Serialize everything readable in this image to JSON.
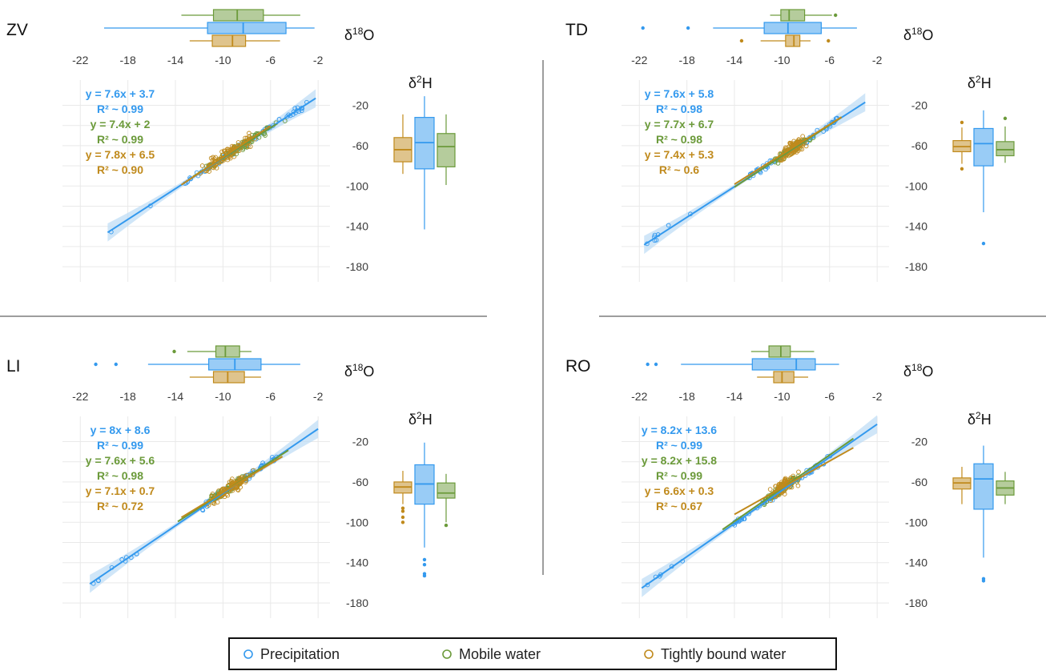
{
  "colors": {
    "precipitation": "#3399ee",
    "mobile": "#6b9a3a",
    "bound": "#c08a1c",
    "ci": "#bcdcf5",
    "grid": "#e9e9e9",
    "tick": "#3a3a3a",
    "divider": "#7d7d7d"
  },
  "axis_labels": {
    "x_prefix": "δ",
    "x_sup": "18",
    "x_suffix": "O",
    "y_prefix": "δ",
    "y_sup": "2",
    "y_suffix": "H"
  },
  "legend": {
    "items": [
      {
        "label": "Precipitation",
        "color": "#3399ee"
      },
      {
        "label": "Mobile water",
        "color": "#6b9a3a"
      },
      {
        "label": "Tightly bound water",
        "color": "#c08a1c"
      }
    ]
  },
  "chart_data": [
    {
      "type": "scatter",
      "site": "ZV",
      "x_ticks": [
        -22,
        -18,
        -14,
        -10,
        -6,
        -2
      ],
      "y_ticks": [
        -20,
        -60,
        -100,
        -140,
        -180
      ],
      "xlim": [
        -23.5,
        -1
      ],
      "ylim": [
        -195,
        5
      ],
      "series": [
        {
          "name": "Precipitation",
          "key": "precipitation",
          "slope": 7.6,
          "intercept": 3.7,
          "x_range": [
            -19.7,
            -2.2
          ],
          "equation": "y = 7.6x + 3.7",
          "r2": "R² ~ 0.99",
          "box_o18": {
            "whisker_lo": -20,
            "q1": -11.3,
            "median": -8.3,
            "q3": -4.7,
            "whisker_hi": -2.3,
            "outliers": []
          },
          "box_h2": {
            "whisker_lo": -143,
            "q1": -83,
            "median": -57,
            "q3": -32,
            "whisker_hi": -11,
            "outliers": []
          }
        },
        {
          "name": "Mobile water",
          "key": "mobile",
          "slope": 7.4,
          "intercept": 2,
          "x_range": [
            -12.5,
            -5.5
          ],
          "equation": "y = 7.4x + 2",
          "r2": "R² ~ 0.99",
          "box_o18": {
            "whisker_lo": -13.5,
            "q1": -10.8,
            "median": -8.8,
            "q3": -6.6,
            "whisker_hi": -3.5,
            "outliers": []
          },
          "box_h2": {
            "whisker_lo": -99,
            "q1": -81,
            "median": -61,
            "q3": -48,
            "whisker_hi": -29,
            "outliers": []
          }
        },
        {
          "name": "Tightly bound water",
          "key": "bound",
          "slope": 7.8,
          "intercept": 6.5,
          "x_range": [
            -13.5,
            -6
          ],
          "equation": "y = 7.8x + 6.5",
          "r2": "R² ~ 0.90",
          "box_o18": {
            "whisker_lo": -12.8,
            "q1": -10.9,
            "median": -9.2,
            "q3": -8.1,
            "whisker_hi": -5.2,
            "outliers": []
          },
          "box_h2": {
            "whisker_lo": -88,
            "q1": -76,
            "median": -64,
            "q3": -52,
            "whisker_hi": -29,
            "outliers": []
          }
        }
      ]
    },
    {
      "type": "scatter",
      "site": "TD",
      "x_ticks": [
        -22,
        -18,
        -14,
        -10,
        -6,
        -2
      ],
      "y_ticks": [
        -20,
        -60,
        -100,
        -140,
        -180
      ],
      "xlim": [
        -23.5,
        -1
      ],
      "ylim": [
        -195,
        5
      ],
      "series": [
        {
          "name": "Precipitation",
          "key": "precipitation",
          "slope": 7.6,
          "intercept": 5.8,
          "x_range": [
            -21.6,
            -3
          ],
          "equation": "y = 7.6x + 5.8",
          "r2": "R² ~ 0.98",
          "box_o18": {
            "whisker_lo": -15.8,
            "q1": -11.5,
            "median": -9.5,
            "q3": -6.7,
            "whisker_hi": -3.7,
            "outliers": [
              -21.7,
              -17.9
            ]
          },
          "box_h2": {
            "whisker_lo": -126,
            "q1": -80,
            "median": -58,
            "q3": -43,
            "whisker_hi": -25,
            "outliers": [
              -157
            ]
          }
        },
        {
          "name": "Mobile water",
          "key": "mobile",
          "slope": 7.7,
          "intercept": 6.7,
          "x_range": [
            -14,
            -5
          ],
          "equation": "y = 7.7x + 6.7",
          "r2": "R² ~ 0.98",
          "box_o18": {
            "whisker_lo": -11,
            "q1": -10.1,
            "median": -9.4,
            "q3": -8.1,
            "whisker_hi": -5.8,
            "outliers": [
              -5.5
            ]
          },
          "box_h2": {
            "whisker_lo": -77,
            "q1": -70,
            "median": -64,
            "q3": -56,
            "whisker_hi": -41,
            "outliers": [
              -33
            ]
          }
        },
        {
          "name": "Tightly bound water",
          "key": "bound",
          "slope": 7.4,
          "intercept": 5.3,
          "x_range": [
            -14,
            -5
          ],
          "equation": "y = 7.4x + 5.3",
          "r2": "R² ~ 0.6",
          "box_o18": {
            "whisker_lo": -11.8,
            "q1": -9.7,
            "median": -9,
            "q3": -8.5,
            "whisker_hi": -7.6,
            "outliers": [
              -13.4,
              -6.1
            ]
          },
          "box_h2": {
            "whisker_lo": -78,
            "q1": -66,
            "median": -61,
            "q3": -55,
            "whisker_hi": -42,
            "outliers": [
              -37,
              -83
            ]
          }
        }
      ]
    },
    {
      "type": "scatter",
      "site": "LI",
      "x_ticks": [
        -22,
        -18,
        -14,
        -10,
        -6,
        -2
      ],
      "y_ticks": [
        -20,
        -60,
        -100,
        -140,
        -180
      ],
      "xlim": [
        -23.5,
        -1
      ],
      "ylim": [
        -195,
        5
      ],
      "series": [
        {
          "name": "Precipitation",
          "key": "precipitation",
          "slope": 8,
          "intercept": 8.6,
          "x_range": [
            -21.2,
            -2
          ],
          "equation": "y = 8x + 8.6",
          "r2": "R² ~ 0.99",
          "box_o18": {
            "whisker_lo": -16.3,
            "q1": -11.2,
            "median": -9,
            "q3": -6.8,
            "whisker_hi": -3.5,
            "outliers": [
              -20.7,
              -19
            ]
          },
          "box_h2": {
            "whisker_lo": -125,
            "q1": -82,
            "median": -62,
            "q3": -43,
            "whisker_hi": -21,
            "outliers": [
              -137,
              -142,
              -151,
              -153
            ]
          }
        },
        {
          "name": "Mobile water",
          "key": "mobile",
          "slope": 7.6,
          "intercept": 5.6,
          "x_range": [
            -13.8,
            -4.5
          ],
          "equation": "y = 7.6x + 5.6",
          "r2": "R² ~ 0.98",
          "box_o18": {
            "whisker_lo": -13,
            "q1": -10.6,
            "median": -9.8,
            "q3": -8.6,
            "whisker_hi": -7.6,
            "outliers": [
              -14.1
            ]
          },
          "box_h2": {
            "whisker_lo": -100,
            "q1": -76,
            "median": -71,
            "q3": -61,
            "whisker_hi": -52,
            "outliers": [
              -103
            ]
          }
        },
        {
          "name": "Tightly bound water",
          "key": "bound",
          "slope": 7.1,
          "intercept": 0.7,
          "x_range": [
            -13.5,
            -5
          ],
          "equation": "y = 7.1x + 0.7",
          "r2": "R² ~ 0.72",
          "box_o18": {
            "whisker_lo": -12.8,
            "q1": -10.8,
            "median": -9.6,
            "q3": -8.2,
            "whisker_hi": -6.8,
            "outliers": []
          },
          "box_h2": {
            "whisker_lo": -82,
            "q1": -71,
            "median": -65,
            "q3": -60,
            "whisker_hi": -49,
            "outliers": [
              -86,
              -89,
              -95,
              -100
            ]
          }
        }
      ]
    },
    {
      "type": "scatter",
      "site": "RO",
      "x_ticks": [
        -22,
        -18,
        -14,
        -10,
        -6,
        -2
      ],
      "y_ticks": [
        -20,
        -60,
        -100,
        -140,
        -180
      ],
      "xlim": [
        -23.5,
        -1
      ],
      "ylim": [
        -195,
        5
      ],
      "series": [
        {
          "name": "Precipitation",
          "key": "precipitation",
          "slope": 8.2,
          "intercept": 13.6,
          "x_range": [
            -21.8,
            -2
          ],
          "equation": "y = 8.2x + 13.6",
          "r2": "R² ~ 0.99",
          "box_o18": {
            "whisker_lo": -18.5,
            "q1": -12.5,
            "median": -8.8,
            "q3": -7.2,
            "whisker_hi": -5.2,
            "outliers": [
              -21.3,
              -20.6
            ]
          },
          "box_h2": {
            "whisker_lo": -135,
            "q1": -87,
            "median": -57,
            "q3": -42,
            "whisker_hi": -24,
            "outliers": [
              -156,
              -158
            ]
          }
        },
        {
          "name": "Mobile water",
          "key": "mobile",
          "slope": 8.2,
          "intercept": 15.8,
          "x_range": [
            -15,
            -4
          ],
          "equation": "y = 8.2x + 15.8",
          "r2": "R² ~ 0.99",
          "box_o18": {
            "whisker_lo": -12.6,
            "q1": -11.1,
            "median": -10.1,
            "q3": -9.3,
            "whisker_hi": -7.3,
            "outliers": []
          },
          "box_h2": {
            "whisker_lo": -82,
            "q1": -73,
            "median": -66,
            "q3": -59,
            "whisker_hi": -50,
            "outliers": []
          }
        },
        {
          "name": "Tightly bound water",
          "key": "bound",
          "slope": 6.6,
          "intercept": 0.3,
          "x_range": [
            -14,
            -4
          ],
          "equation": "y = 6.6x + 0.3",
          "r2": "R² ~ 0.67",
          "box_o18": {
            "whisker_lo": -12.1,
            "q1": -10.7,
            "median": -10,
            "q3": -9,
            "whisker_hi": -7.8,
            "outliers": []
          },
          "box_h2": {
            "whisker_lo": -82,
            "q1": -67,
            "median": -61,
            "q3": -56,
            "whisker_hi": -45,
            "outliers": []
          }
        }
      ]
    }
  ]
}
